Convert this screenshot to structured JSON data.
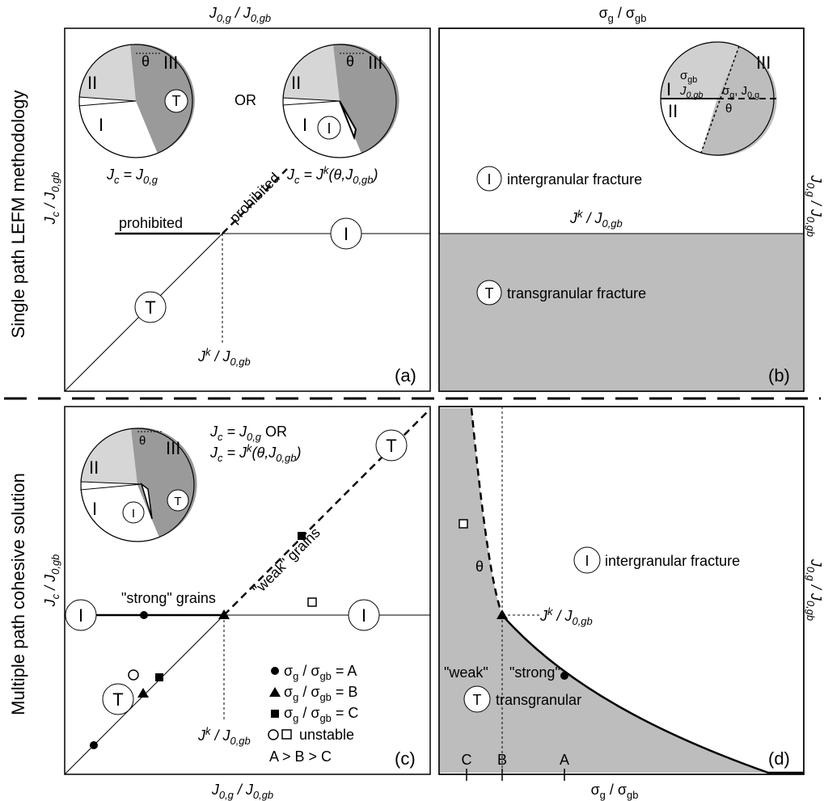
{
  "row_labels": {
    "top": "Single path LEFM methodology",
    "bottom": "Multiple path cohesive solution"
  },
  "panel_a": {
    "id": "(a)",
    "top_axis": "J0,g / J0,gb",
    "left_axis": "Jc / J0,gb",
    "inset_left_caption": "Jc = J0,g",
    "inset_right_caption": "Jc = Jk(θ,J0,gb)",
    "or": "OR",
    "prohibited_horizontal": "prohibited",
    "prohibited_diagonal": "prohibited",
    "threshold": "Jk / J0,gb",
    "region_T": "T",
    "region_I": "I",
    "roman": [
      "I",
      "II",
      "III"
    ],
    "theta": "θ"
  },
  "panel_b": {
    "id": "(b)",
    "top_axis": "σg / σgb",
    "right_axis": "J0,g / J0,gb",
    "intergranular": "intergranular fracture",
    "transgranular": "transgranular fracture",
    "threshold": "Jk / J0,gb",
    "inset_sigma_gb": "σgb",
    "inset_J0gb": "J0,gb",
    "inset_sigma_g": "σg, J0,g",
    "theta": "θ",
    "roman": [
      "I",
      "II",
      "III"
    ],
    "region_T": "T",
    "region_I": "I"
  },
  "panel_c": {
    "id": "(c)",
    "bottom_axis": "J0,g / J0,gb",
    "left_axis": "Jc / J0,gb",
    "eq1": "Jc = J0,g OR",
    "eq2": "Jc = Jk(θ,J0,gb)",
    "weak": "\"weak\" grains",
    "strong": "\"strong\" grains",
    "threshold": "Jk / J0,gb",
    "legend": [
      {
        "marker": "circle",
        "text": "σg / σgb = A"
      },
      {
        "marker": "triangle",
        "text": "σg / σgb = B"
      },
      {
        "marker": "square",
        "text": "σg / σgb = C"
      },
      {
        "marker": "open",
        "text": "unstable"
      }
    ],
    "order": "A > B > C",
    "region_T": "T",
    "region_I": "I",
    "roman": [
      "I",
      "II",
      "III"
    ],
    "theta": "θ"
  },
  "panel_d": {
    "id": "(d)",
    "bottom_axis": "σg / σgb",
    "right_axis": "J0,g / J0,gb",
    "intergranular": "intergranular fracture",
    "transgranular": "transgranular",
    "weak": "\"weak\"",
    "strong": "\"strong\"",
    "threshold": "Jk / J0,gb",
    "theta": "θ",
    "ticks": [
      "C",
      "B",
      "A"
    ],
    "region_T": "T",
    "region_I": "I"
  },
  "colors": {
    "light_gray": "#d6d6d6",
    "dark_gray": "#9a9a9a",
    "fill_gray": "#bdbdbd",
    "ink": "#000000"
  }
}
